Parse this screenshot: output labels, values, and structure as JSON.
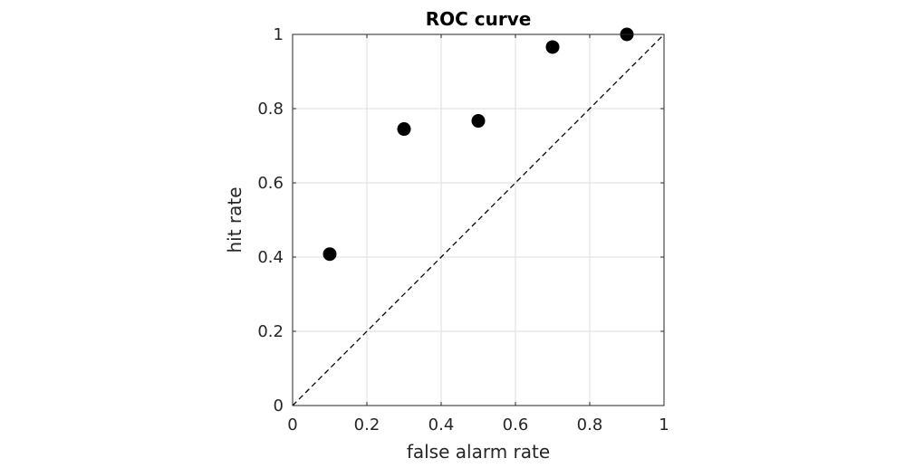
{
  "chart_data": {
    "type": "scatter",
    "title": "ROC curve",
    "xlabel": "false alarm rate",
    "ylabel": "hit rate",
    "xlim": [
      0,
      1
    ],
    "ylim": [
      0,
      1
    ],
    "xticks": [
      0,
      0.2,
      0.4,
      0.6,
      0.8,
      1
    ],
    "yticks": [
      0,
      0.2,
      0.4,
      0.6,
      0.8,
      1
    ],
    "xtick_labels": [
      "0",
      "0.2",
      "0.4",
      "0.6",
      "0.8",
      "1"
    ],
    "ytick_labels": [
      "0",
      "0.2",
      "0.4",
      "0.6",
      "0.8",
      "1"
    ],
    "grid": true,
    "series": [
      {
        "x": [
          0.1,
          0.3,
          0.5,
          0.7,
          0.9
        ],
        "y": [
          0.408,
          0.745,
          0.767,
          0.966,
          1.0
        ],
        "marker": "filled-circle",
        "color": "#000000"
      }
    ],
    "reference_line": {
      "x": [
        0,
        1
      ],
      "y": [
        0,
        1
      ],
      "style": "dashed",
      "color": "#000000"
    }
  }
}
